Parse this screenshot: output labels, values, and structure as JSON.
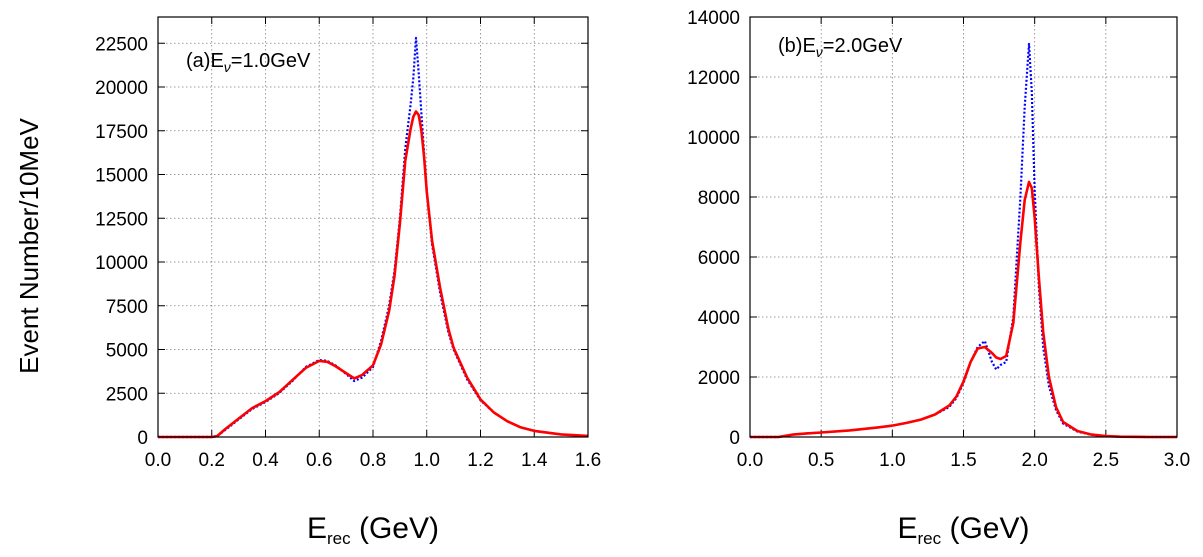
{
  "y_axis_label": "Event Number/10MeV",
  "chart_data": [
    {
      "type": "line",
      "annotation": {
        "prefix": "(a)E",
        "sub": "ν",
        "suffix": "=1.0GeV"
      },
      "xlabel": {
        "main": "E",
        "sub": "rec",
        "unit": " (GeV)"
      },
      "xlim": [
        0.0,
        1.6
      ],
      "ylim": [
        0,
        24000
      ],
      "x_ticks": [
        "0.0",
        "0.2",
        "0.4",
        "0.6",
        "0.8",
        "1.0",
        "1.2",
        "1.4",
        "1.6"
      ],
      "y_ticks": [
        "0",
        "2500",
        "5000",
        "7500",
        "10000",
        "12500",
        "15000",
        "17500",
        "20000",
        "22500"
      ],
      "grid": true,
      "series": [
        {
          "style": "dotted",
          "color": "#0000ff",
          "x": [
            0.0,
            0.2,
            0.22,
            0.25,
            0.3,
            0.35,
            0.4,
            0.45,
            0.5,
            0.55,
            0.6,
            0.63,
            0.66,
            0.7,
            0.73,
            0.76,
            0.8,
            0.83,
            0.86,
            0.88,
            0.9,
            0.92,
            0.94,
            0.95,
            0.96,
            0.97,
            0.98,
            0.99,
            1.0,
            1.02,
            1.05,
            1.08,
            1.1,
            1.15,
            1.2,
            1.25,
            1.3,
            1.35,
            1.4,
            1.5,
            1.6
          ],
          "y": [
            0,
            0,
            50,
            400,
            1000,
            1600,
            2000,
            2500,
            3200,
            4000,
            4400,
            4350,
            4100,
            3600,
            3200,
            3400,
            4000,
            5500,
            7500,
            9500,
            12500,
            16500,
            19000,
            20500,
            22800,
            20800,
            18500,
            16200,
            14000,
            11000,
            8200,
            6000,
            5000,
            3300,
            2100,
            1400,
            900,
            550,
            350,
            150,
            60
          ]
        },
        {
          "style": "solid",
          "color": "#ff0000",
          "x": [
            0.0,
            0.2,
            0.22,
            0.25,
            0.3,
            0.35,
            0.4,
            0.45,
            0.5,
            0.55,
            0.6,
            0.63,
            0.66,
            0.7,
            0.73,
            0.76,
            0.8,
            0.83,
            0.86,
            0.88,
            0.9,
            0.92,
            0.94,
            0.95,
            0.96,
            0.97,
            0.98,
            0.99,
            1.0,
            1.02,
            1.05,
            1.08,
            1.1,
            1.15,
            1.2,
            1.25,
            1.3,
            1.35,
            1.4,
            1.5,
            1.6
          ],
          "y": [
            0,
            0,
            50,
            450,
            1050,
            1650,
            2050,
            2550,
            3250,
            3950,
            4350,
            4300,
            4050,
            3650,
            3350,
            3550,
            4100,
            5300,
            7200,
            9200,
            12200,
            15800,
            17600,
            18300,
            18600,
            18400,
            17500,
            16000,
            14000,
            11200,
            8500,
            6200,
            5100,
            3400,
            2150,
            1400,
            900,
            550,
            350,
            150,
            60
          ]
        }
      ]
    },
    {
      "type": "line",
      "annotation": {
        "prefix": "(b)E",
        "sub": "ν",
        "suffix": "=2.0GeV"
      },
      "xlabel": {
        "main": "E",
        "sub": "rec",
        "unit": " (GeV)"
      },
      "xlim": [
        0.0,
        3.0
      ],
      "ylim": [
        0,
        14000
      ],
      "x_ticks": [
        "0.0",
        "0.5",
        "1.0",
        "1.5",
        "2.0",
        "2.5",
        "3.0"
      ],
      "y_ticks": [
        "0",
        "2000",
        "4000",
        "6000",
        "8000",
        "10000",
        "12000",
        "14000"
      ],
      "grid": true,
      "series": [
        {
          "style": "dotted",
          "color": "#0000ff",
          "x": [
            0.0,
            0.2,
            0.25,
            0.3,
            0.4,
            0.5,
            0.7,
            0.9,
            1.0,
            1.1,
            1.2,
            1.3,
            1.4,
            1.45,
            1.5,
            1.55,
            1.6,
            1.65,
            1.7,
            1.73,
            1.76,
            1.8,
            1.85,
            1.9,
            1.93,
            1.96,
            1.98,
            2.0,
            2.03,
            2.06,
            2.1,
            2.15,
            2.2,
            2.3,
            2.4,
            2.5,
            2.6,
            2.8,
            3.0
          ],
          "y": [
            0,
            0,
            40,
            80,
            120,
            150,
            220,
            320,
            380,
            470,
            580,
            750,
            1000,
            1300,
            1800,
            2500,
            3000,
            3200,
            2500,
            2250,
            2400,
            2500,
            4000,
            8000,
            11000,
            13100,
            11500,
            8200,
            5000,
            3000,
            1700,
            900,
            450,
            180,
            70,
            30,
            10,
            0,
            0
          ]
        },
        {
          "style": "solid",
          "color": "#ff0000",
          "x": [
            0.0,
            0.2,
            0.25,
            0.3,
            0.4,
            0.5,
            0.7,
            0.9,
            1.0,
            1.1,
            1.2,
            1.3,
            1.4,
            1.45,
            1.5,
            1.55,
            1.6,
            1.65,
            1.7,
            1.73,
            1.76,
            1.8,
            1.85,
            1.9,
            1.93,
            1.96,
            1.98,
            2.0,
            2.03,
            2.06,
            2.1,
            2.15,
            2.2,
            2.3,
            2.4,
            2.5,
            2.6,
            2.8,
            3.0
          ],
          "y": [
            0,
            0,
            40,
            80,
            120,
            150,
            220,
            320,
            380,
            470,
            580,
            750,
            1050,
            1350,
            1850,
            2500,
            2950,
            3000,
            2800,
            2650,
            2600,
            2700,
            3800,
            6500,
            7900,
            8500,
            8300,
            7300,
            5300,
            3500,
            2000,
            1000,
            500,
            200,
            80,
            30,
            10,
            0,
            0
          ]
        }
      ]
    }
  ]
}
